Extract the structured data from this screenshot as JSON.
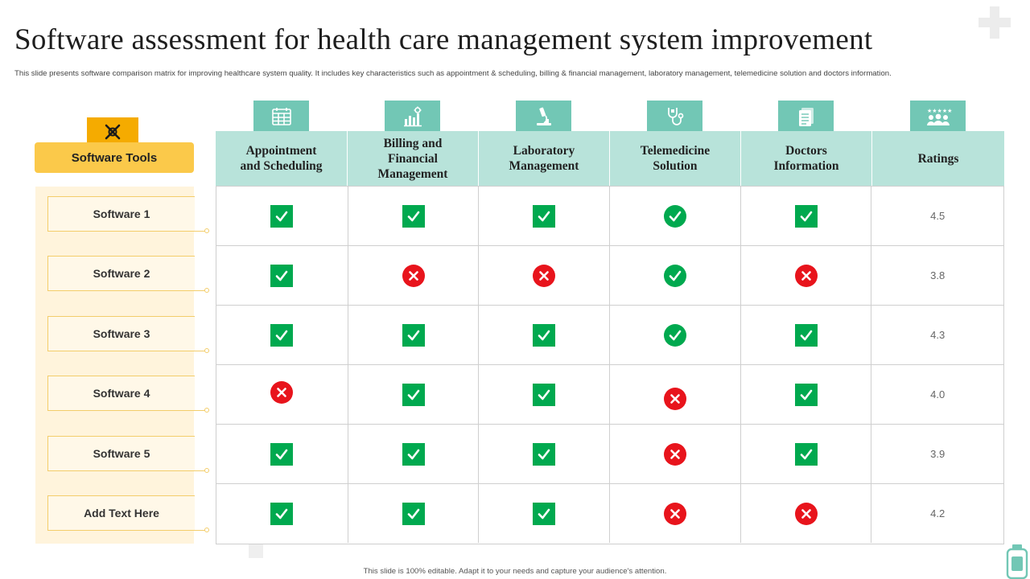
{
  "slide": {
    "title": "Software assessment for health care management system improvement",
    "subtitle": "This slide presents software comparison matrix for improving healthcare system quality. It includes key characteristics such as appointment & scheduling, billing & financial management, laboratory management, telemedicine solution and doctors information.",
    "footer": "This slide is 100% editable. Adapt it to your needs and capture your audience's attention."
  },
  "sidebar": {
    "header": "Software Tools",
    "header_icon": "tools-icon",
    "items": [
      "Software 1",
      "Software 2",
      "Software 3",
      "Software 4",
      "Software 5",
      "Add  Text Here"
    ]
  },
  "columns": [
    {
      "label_lines": [
        "Appointment",
        "and Scheduling"
      ],
      "icon": "calendar-icon"
    },
    {
      "label_lines": [
        "Billing and",
        "Financial",
        "Management"
      ],
      "icon": "finance-chart-icon"
    },
    {
      "label_lines": [
        "Laboratory",
        "Management"
      ],
      "icon": "microscope-icon"
    },
    {
      "label_lines": [
        "Telemedicine",
        "Solution"
      ],
      "icon": "stethoscope-icon"
    },
    {
      "label_lines": [
        "Doctors",
        "Information"
      ],
      "icon": "document-icon"
    },
    {
      "label_lines": [
        "Ratings"
      ],
      "icon": "team-rating-icon"
    }
  ],
  "rows": [
    {
      "marks": [
        "check",
        "check",
        "check",
        "check-circle",
        "check"
      ],
      "rating": "4.5"
    },
    {
      "marks": [
        "check",
        "cross",
        "cross",
        "check-circle",
        "cross"
      ],
      "rating": "3.8"
    },
    {
      "marks": [
        "check",
        "check",
        "check",
        "check-circle",
        "check"
      ],
      "rating": "4.3"
    },
    {
      "marks": [
        "cross",
        "check",
        "check",
        "cross",
        "check"
      ],
      "rating": "4.0"
    },
    {
      "marks": [
        "check",
        "check",
        "check",
        "cross",
        "check"
      ],
      "rating": "3.9"
    },
    {
      "marks": [
        "check",
        "check",
        "check",
        "cross",
        "cross"
      ],
      "rating": "4.2"
    }
  ],
  "colors": {
    "accent_teal": "#72c7b5",
    "header_teal": "#b8e3da",
    "accent_yellow": "#fbc94a",
    "check_green": "#00a94f",
    "cross_red": "#e8141c"
  }
}
